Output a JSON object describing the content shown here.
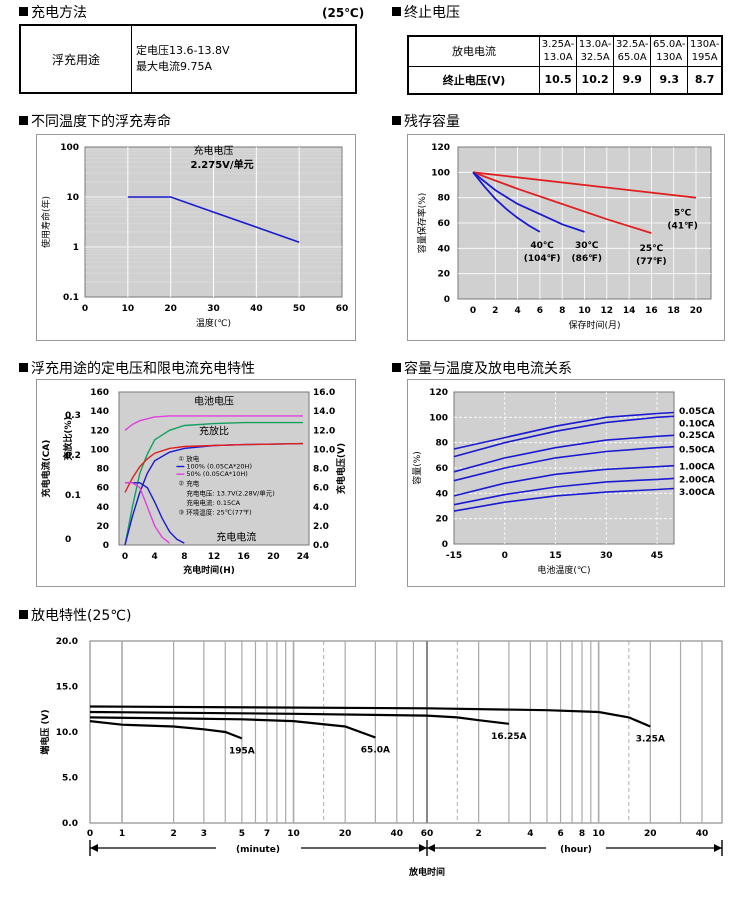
{
  "sections": {
    "charging_method": "充电方法",
    "charging_method_temp": "(25℃)",
    "cutoff_voltage": "终止电压",
    "float_life": "不同温度下的浮充寿命",
    "capacity_retention": "残存容量",
    "charge_characteristics": "浮充用途的定电压和限电流充电特性",
    "capacity_vs_temp": "容量与温度及放电电流关系",
    "discharge_characteristics": "放电特性(25℃)"
  },
  "charge_table": {
    "label": "浮充用途",
    "line1": "定电压13.6-13.8V",
    "line2": "最大电流9.75A"
  },
  "cutoff_table": {
    "row1_label": "放电电流",
    "row2_label": "终止电压(V)",
    "currents": [
      [
        "3.25A-",
        "13.0A"
      ],
      [
        "13.0A-",
        "32.5A"
      ],
      [
        "32.5A-",
        "65.0A"
      ],
      [
        "65.0A-",
        "130A"
      ],
      [
        "130A-",
        "195A"
      ]
    ],
    "voltages": [
      "10.5",
      "10.2",
      "9.9",
      "9.3",
      "8.7"
    ]
  },
  "chart_data": [
    {
      "type": "line",
      "title": "",
      "xlabel": "温度(℃)",
      "ylabel": "使用寿命(年)",
      "y_scale": "log",
      "xlim": [
        0,
        60
      ],
      "ylim": [
        0.1,
        100
      ],
      "x_ticks": [
        "0",
        "10",
        "20",
        "30",
        "40",
        "50",
        "60"
      ],
      "y_ticks": [
        "100",
        "10",
        "1",
        "0.1"
      ],
      "annotation": [
        "充电电压",
        "2.275V/单元"
      ],
      "series": [
        {
          "x": [
            10,
            20,
            30,
            40,
            50
          ],
          "values": [
            10,
            10,
            5,
            2.5,
            1.25
          ]
        }
      ],
      "grid": true
    },
    {
      "type": "line",
      "xlabel": "保存时间(月)",
      "ylabel": "容量保存率(%)",
      "xlim": [
        0,
        20
      ],
      "ylim": [
        0,
        120
      ],
      "x_ticks": [
        "0",
        "2",
        "4",
        "6",
        "8",
        "10",
        "12",
        "14",
        "16",
        "18",
        "20"
      ],
      "y_ticks": [
        "120",
        "100",
        "80",
        "60",
        "40",
        "20",
        "0"
      ],
      "series": [
        {
          "name": "5℃ (41℉)",
          "color": "#e02020",
          "x": [
            0,
            20
          ],
          "values": [
            100,
            80
          ]
        },
        {
          "name": "25℃ (77℉)",
          "color": "#e02020",
          "x": [
            0,
            4,
            8,
            12,
            16
          ],
          "values": [
            100,
            87,
            75,
            63,
            52
          ]
        },
        {
          "name": "30℃ (86℉)",
          "color": "#1a1ad0",
          "x": [
            0,
            2,
            4,
            6,
            8,
            10
          ],
          "values": [
            100,
            86,
            75,
            67,
            59,
            53
          ]
        },
        {
          "name": "40℃ (104℉)",
          "color": "#1a1ad0",
          "x": [
            0,
            1,
            2,
            3,
            4,
            5,
            6
          ],
          "values": [
            100,
            89,
            79,
            71,
            64,
            58,
            53
          ]
        }
      ],
      "grid": true
    },
    {
      "type": "line",
      "xlabel": "充电时间(H)",
      "ylabel_left": "充电电流(CA)",
      "ylabel_left2": "充放比(%)",
      "ylabel_right": "充电电压(V)",
      "x_ticks": [
        "0",
        "4",
        "8",
        "12",
        "16",
        "20",
        "24"
      ],
      "y_ticks_pct": [
        "160",
        "140",
        "120",
        "100",
        "80",
        "60",
        "40",
        "20",
        "0"
      ],
      "y_ticks_ca": [
        "0.3",
        "0.2",
        "0.1",
        "0"
      ],
      "y_ticks_v": [
        "16.0",
        "14.0",
        "12.0",
        "10.0",
        "8.0",
        "6.0",
        "4.0",
        "2.0",
        "0.0"
      ],
      "labels": {
        "voltage": "电池电压",
        "ratio": "充放比",
        "current": "充电电流"
      },
      "legend": [
        "① 放电",
        "100% (0.05CA*20H)",
        "50% (0.05CA*10H)",
        "② 充电",
        "充电电压: 13.7V(2.28V/单元)",
        "充电电流: 0.15CA",
        "③ 环境温度: 25℃(77℉)"
      ],
      "series": [
        {
          "name": "电池电压-100%",
          "color": "#1a1ad0",
          "x": [
            0,
            1,
            2,
            3,
            4,
            6,
            8,
            12,
            16,
            24
          ],
          "values": [
            0,
            40,
            75,
            95,
            110,
            120,
            125,
            127,
            128,
            128
          ]
        },
        {
          "name": "电池电压-50%",
          "color": "#e040e0",
          "x": [
            0,
            1,
            2,
            3,
            4,
            6,
            8,
            12,
            16,
            24
          ],
          "values": [
            120,
            126,
            130,
            132,
            134,
            135,
            135,
            135,
            135,
            135
          ]
        },
        {
          "name": "充放比-100%",
          "color": "#1a1ad0",
          "x": [
            0,
            1,
            2,
            3,
            4,
            6,
            8,
            12,
            16,
            24
          ],
          "values": [
            0,
            30,
            55,
            75,
            88,
            97,
            101,
            104,
            105,
            106
          ]
        },
        {
          "name": "充放比-50%",
          "color": "#e02020",
          "x": [
            0,
            1,
            2,
            3,
            4,
            6,
            8,
            12,
            16,
            24
          ],
          "values": [
            55,
            70,
            82,
            90,
            96,
            101,
            103,
            104,
            105,
            106
          ]
        },
        {
          "name": "充电电流-100%",
          "color": "#1a1ad0",
          "x": [
            0,
            1,
            2,
            3,
            4,
            5,
            6,
            7,
            8
          ],
          "values": [
            65,
            65,
            65,
            60,
            45,
            28,
            14,
            6,
            2
          ]
        },
        {
          "name": "充电电流-50%",
          "color": "#e040e0",
          "x": [
            0,
            1,
            2,
            3,
            4,
            5,
            6
          ],
          "values": [
            65,
            65,
            60,
            40,
            20,
            8,
            2
          ]
        }
      ]
    },
    {
      "type": "line",
      "xlabel": "电池温度(℃)",
      "ylabel": "容量(%)",
      "xlim": [
        -15,
        50
      ],
      "ylim": [
        0,
        120
      ],
      "x_ticks": [
        "-15",
        "0",
        "15",
        "30",
        "45"
      ],
      "y_ticks": [
        "120",
        "100",
        "80",
        "60",
        "40",
        "20",
        "0"
      ],
      "series": [
        {
          "name": "0.05CA",
          "x": [
            -15,
            0,
            15,
            30,
            45
          ],
          "values": [
            75,
            84,
            93,
            100,
            103
          ]
        },
        {
          "name": "0.10CA",
          "x": [
            -15,
            0,
            15,
            30,
            45
          ],
          "values": [
            69,
            80,
            89,
            96,
            100
          ]
        },
        {
          "name": "0.25CA",
          "x": [
            -15,
            0,
            15,
            30,
            45
          ],
          "values": [
            57,
            68,
            76,
            82,
            85
          ]
        },
        {
          "name": "0.50CA",
          "x": [
            -15,
            0,
            15,
            30,
            45
          ],
          "values": [
            50,
            60,
            68,
            73,
            76
          ]
        },
        {
          "name": "1.00CA",
          "x": [
            -15,
            0,
            15,
            30,
            45
          ],
          "values": [
            38,
            48,
            55,
            59,
            61
          ]
        },
        {
          "name": "2.00CA",
          "x": [
            -15,
            0,
            15,
            30,
            45
          ],
          "values": [
            31,
            39,
            45,
            49,
            51
          ]
        },
        {
          "name": "3.00CA",
          "x": [
            -15,
            0,
            15,
            30,
            45
          ],
          "values": [
            26,
            33,
            38,
            41,
            43
          ]
        }
      ],
      "grid": true
    },
    {
      "type": "line",
      "xlabel": "放电时间",
      "ylabel": "端电压 (V)",
      "ylim": [
        0,
        20
      ],
      "y_ticks": [
        "20.0",
        "15.0",
        "10.0",
        "5.0",
        "0.0"
      ],
      "x_ticks_minutes": [
        "0",
        "1",
        "2",
        "3",
        "5",
        "7",
        "10",
        "20",
        "40",
        "60"
      ],
      "x_ticks_hours": [
        "2",
        "4",
        "6",
        "8",
        "10",
        "20",
        "40"
      ],
      "unit_minute": "(minute)",
      "unit_hour": "(hour)",
      "series": [
        {
          "name": "195A",
          "x_min": [
            0,
            1,
            2,
            3,
            4,
            5
          ],
          "values": [
            11.2,
            10.8,
            10.6,
            10.3,
            10.0,
            9.3
          ]
        },
        {
          "name": "65.0A",
          "x_min": [
            0,
            2,
            5,
            10,
            20,
            30
          ],
          "values": [
            11.6,
            11.5,
            11.4,
            11.2,
            10.6,
            9.4
          ]
        },
        {
          "name": "16.25A",
          "x_min": [
            0,
            10,
            60,
            90,
            120,
            180
          ],
          "values": [
            12.2,
            12.0,
            11.8,
            11.6,
            11.3,
            10.9
          ]
        },
        {
          "name": "3.25A",
          "x_min": [
            0,
            60,
            300,
            600,
            900,
            1200
          ],
          "values": [
            12.8,
            12.6,
            12.4,
            12.2,
            11.6,
            10.6
          ]
        }
      ]
    }
  ]
}
